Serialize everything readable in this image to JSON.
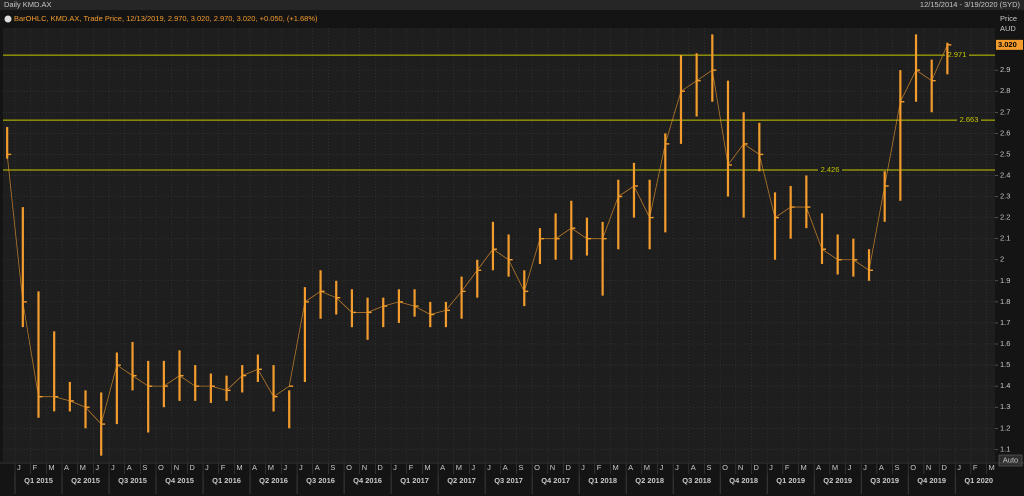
{
  "chart_data": {
    "type": "ohlc",
    "title": "Daily KMD.AX",
    "date_range": "12/15/2014 - 3/19/2020 (SYD)",
    "legend": "BarOHLC, KMD.AX, Trade Price, 12/13/2019, 2.970, 3.020, 2.970, 3.020, +0.050, (+1.68%)",
    "y_axis_label": "Price",
    "y_axis_unit": "AUD",
    "auto_button": "Auto",
    "color": "#f39c2e",
    "level_color": "#c8c800",
    "x": [
      "2014-12",
      "2015-01",
      "2015-02",
      "2015-03",
      "2015-04",
      "2015-05",
      "2015-06",
      "2015-07",
      "2015-08",
      "2015-09",
      "2015-10",
      "2015-11",
      "2015-12",
      "2016-01",
      "2016-02",
      "2016-03",
      "2016-04",
      "2016-05",
      "2016-06",
      "2016-07",
      "2016-08",
      "2016-09",
      "2016-10",
      "2016-11",
      "2016-12",
      "2017-01",
      "2017-02",
      "2017-03",
      "2017-04",
      "2017-05",
      "2017-06",
      "2017-07",
      "2017-08",
      "2017-09",
      "2017-10",
      "2017-11",
      "2017-12",
      "2018-01",
      "2018-02",
      "2018-03",
      "2018-04",
      "2018-05",
      "2018-06",
      "2018-07",
      "2018-08",
      "2018-09",
      "2018-10",
      "2018-11",
      "2018-12",
      "2019-01",
      "2019-02",
      "2019-03",
      "2019-04",
      "2019-05",
      "2019-06",
      "2019-07",
      "2019-08",
      "2019-09",
      "2019-10",
      "2019-11",
      "2019-12"
    ],
    "high": [
      2.63,
      2.25,
      1.85,
      1.66,
      1.42,
      1.38,
      1.37,
      1.56,
      1.61,
      1.52,
      1.52,
      1.57,
      1.5,
      1.46,
      1.45,
      1.5,
      1.55,
      1.5,
      1.38,
      1.87,
      1.95,
      1.9,
      1.86,
      1.82,
      1.82,
      1.86,
      1.86,
      1.8,
      1.8,
      1.92,
      2.0,
      2.18,
      2.12,
      1.95,
      2.15,
      2.22,
      2.28,
      2.2,
      2.18,
      2.38,
      2.46,
      2.38,
      2.6,
      2.97,
      2.98,
      3.07,
      2.85,
      2.7,
      2.65,
      2.32,
      2.35,
      2.4,
      2.22,
      2.12,
      2.1,
      2.05,
      2.42,
      2.9,
      3.07,
      2.95,
      3.03
    ],
    "low": [
      2.48,
      1.68,
      1.25,
      1.28,
      1.28,
      1.2,
      1.07,
      1.22,
      1.38,
      1.18,
      1.3,
      1.33,
      1.33,
      1.32,
      1.33,
      1.37,
      1.42,
      1.28,
      1.2,
      1.42,
      1.72,
      1.74,
      1.68,
      1.62,
      1.68,
      1.7,
      1.73,
      1.68,
      1.68,
      1.72,
      1.82,
      1.95,
      1.92,
      1.78,
      1.98,
      2.0,
      2.0,
      2.02,
      1.83,
      2.05,
      2.2,
      2.05,
      2.13,
      2.55,
      2.68,
      2.75,
      2.3,
      2.2,
      2.42,
      2.0,
      2.1,
      2.15,
      1.98,
      1.93,
      1.92,
      1.9,
      2.18,
      2.28,
      2.75,
      2.7,
      2.88
    ],
    "close": [
      2.5,
      1.8,
      1.35,
      1.35,
      1.33,
      1.3,
      1.22,
      1.5,
      1.45,
      1.4,
      1.4,
      1.45,
      1.4,
      1.4,
      1.38,
      1.45,
      1.48,
      1.35,
      1.4,
      1.8,
      1.85,
      1.82,
      1.75,
      1.75,
      1.78,
      1.8,
      1.78,
      1.74,
      1.76,
      1.85,
      1.95,
      2.05,
      2.0,
      1.85,
      2.1,
      2.1,
      2.15,
      2.1,
      2.1,
      2.3,
      2.35,
      2.2,
      2.55,
      2.8,
      2.85,
      2.9,
      2.45,
      2.55,
      2.5,
      2.2,
      2.25,
      2.25,
      2.05,
      2.0,
      2.0,
      1.95,
      2.35,
      2.75,
      2.9,
      2.85,
      3.02
    ],
    "levels": [
      2.971,
      2.663,
      2.426
    ],
    "last_price": {
      "value": 3.02,
      "label": "3.020"
    },
    "ylim": [
      1.04,
      3.1
    ],
    "yticks": [
      1.1,
      1.2,
      1.3,
      1.4,
      1.5,
      1.6,
      1.7,
      1.8,
      1.9,
      2,
      2.1,
      2.2,
      2.3,
      2.4,
      2.5,
      2.6,
      2.7,
      2.8,
      2.9
    ],
    "month_labels": [
      "J",
      "F",
      "M",
      "A",
      "M",
      "J",
      "J",
      "A",
      "S",
      "O",
      "N",
      "D",
      "J",
      "F",
      "M",
      "A",
      "M",
      "J",
      "J",
      "A",
      "S",
      "O",
      "N",
      "D",
      "J",
      "F",
      "M",
      "A",
      "M",
      "J",
      "J",
      "A",
      "S",
      "O",
      "N",
      "D",
      "J",
      "F",
      "M",
      "A",
      "M",
      "J",
      "J",
      "A",
      "S",
      "O",
      "N",
      "D",
      "J",
      "F",
      "M",
      "A",
      "M",
      "J",
      "J",
      "A",
      "S",
      "O",
      "N",
      "D",
      "J",
      "F",
      "M"
    ],
    "quarter_labels": [
      "Q1 2015",
      "Q2 2015",
      "Q3 2015",
      "Q4 2015",
      "Q1 2016",
      "Q2 2016",
      "Q3 2016",
      "Q4 2016",
      "Q1 2017",
      "Q2 2017",
      "Q3 2017",
      "Q4 2017",
      "Q1 2018",
      "Q2 2018",
      "Q3 2018",
      "Q4 2018",
      "Q1 2019",
      "Q2 2019",
      "Q3 2019",
      "Q4 2019",
      "Q1 2020"
    ],
    "grid": true
  }
}
